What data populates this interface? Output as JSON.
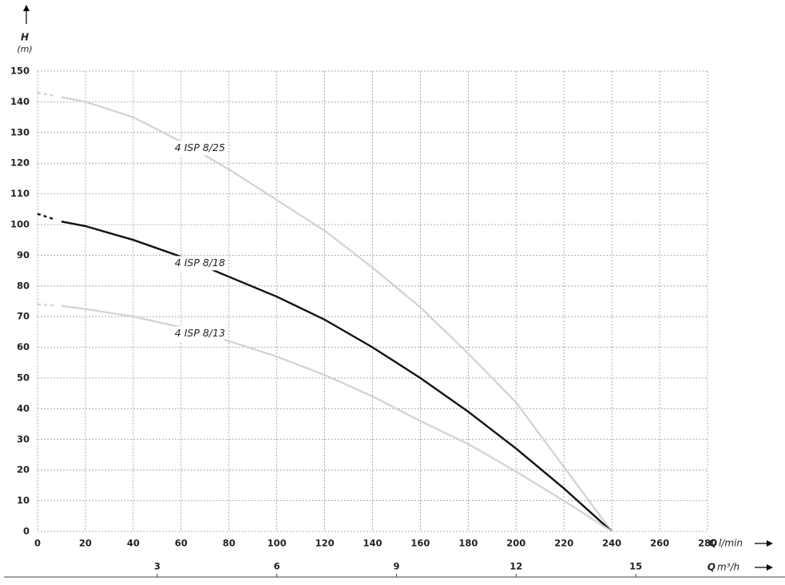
{
  "chart_data": {
    "type": "line",
    "ylabel": "H",
    "yunit": "(m)",
    "xlabel": "Q",
    "xunit": "l/min",
    "x2label": "Q",
    "x2unit": "m³/h",
    "x": [
      0,
      10,
      20,
      40,
      60,
      80,
      100,
      120,
      140,
      160,
      180,
      200,
      220,
      240
    ],
    "series": [
      {
        "name": "4 ISP 8/25",
        "color": "#d4d4d4",
        "values": [
          143,
          141.5,
          140,
          135,
          127,
          118,
          108,
          98,
          86,
          73,
          58,
          42,
          21,
          0
        ]
      },
      {
        "name": "4 ISP 8/18",
        "color": "#111111",
        "values": [
          103.5,
          101,
          99.5,
          95,
          89.5,
          83,
          76.5,
          69,
          60,
          50,
          39,
          27,
          14,
          0
        ]
      },
      {
        "name": "4 ISP 8/13",
        "color": "#d4d4d4",
        "values": [
          74,
          73.5,
          72.5,
          70,
          66.5,
          62,
          57,
          51,
          44,
          36,
          28.5,
          19.5,
          10,
          0
        ]
      }
    ],
    "xlim": [
      0,
      280
    ],
    "xticks": [
      0,
      20,
      40,
      60,
      80,
      100,
      120,
      140,
      160,
      180,
      200,
      220,
      240,
      260,
      280
    ],
    "ylim": [
      0,
      150
    ],
    "yticks": [
      0,
      10,
      20,
      30,
      40,
      50,
      60,
      70,
      80,
      90,
      100,
      110,
      120,
      130,
      140,
      150
    ],
    "x2lim": [
      0,
      16.8
    ],
    "x2ticks": [
      3,
      6,
      9,
      12,
      15
    ],
    "grid": true
  }
}
